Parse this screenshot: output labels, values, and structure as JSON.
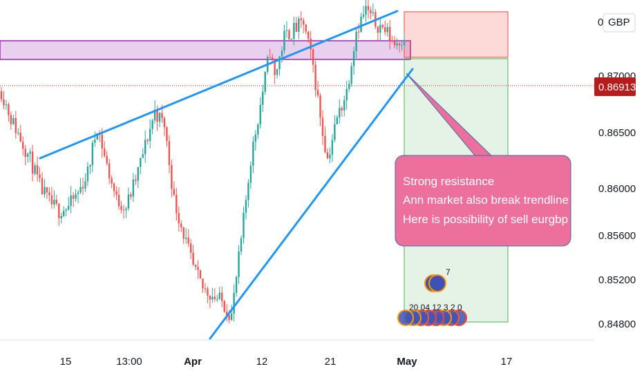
{
  "currency_label": "GBP",
  "currency_prefix": "0",
  "current_price": "0.86913",
  "annotation": {
    "lines": [
      "Strong resistance",
      "Ann market also break trendline",
      "Here is possibility of sell eurgbp"
    ]
  },
  "event_markers": {
    "top_text": "7",
    "bottom_text": "20 04 12 3 2 0"
  },
  "colors": {
    "bull": "#26a69a",
    "bear": "#ef5350",
    "trendline": "#2196f3",
    "resistance_zone": "#9c27b0",
    "stop_zone": "#f44336",
    "target_zone": "#4caf50",
    "annotation_bg": "#ec6f9c",
    "price_tag": "#b71c1c"
  },
  "chart_data": {
    "type": "candlestick",
    "symbol": "EURGBP",
    "y_ticks": [
      "0.86500",
      "0.86000",
      "0.85600",
      "0.85200",
      "0.84800"
    ],
    "x_ticks": [
      {
        "label": "15",
        "bold": false
      },
      {
        "label": "13:00",
        "bold": false
      },
      {
        "label": "Apr",
        "bold": true
      },
      {
        "label": "12",
        "bold": false
      },
      {
        "label": "21",
        "bold": false
      },
      {
        "label": "May",
        "bold": true
      },
      {
        "label": "17",
        "bold": false
      }
    ],
    "ylim": [
      0.8467,
      0.8717
    ],
    "current_price": 0.86913,
    "price_path": [
      [
        0,
        0.865
      ],
      [
        4,
        0.863
      ],
      [
        8,
        0.8615
      ],
      [
        12,
        0.86
      ],
      [
        16,
        0.858
      ],
      [
        20,
        0.8568
      ],
      [
        24,
        0.8562
      ],
      [
        28,
        0.8565
      ],
      [
        32,
        0.8575
      ],
      [
        36,
        0.859
      ],
      [
        40,
        0.8625
      ],
      [
        44,
        0.8595
      ],
      [
        48,
        0.857
      ],
      [
        52,
        0.8565
      ],
      [
        56,
        0.8585
      ],
      [
        60,
        0.861
      ],
      [
        64,
        0.8635
      ],
      [
        68,
        0.8625
      ],
      [
        72,
        0.857
      ],
      [
        76,
        0.8545
      ],
      [
        80,
        0.852
      ],
      [
        84,
        0.8505
      ],
      [
        88,
        0.85
      ],
      [
        92,
        0.8495
      ],
      [
        94,
        0.849
      ],
      [
        96,
        0.8485
      ],
      [
        100,
        0.854
      ],
      [
        104,
        0.86
      ],
      [
        108,
        0.864
      ],
      [
        112,
        0.868
      ],
      [
        114,
        0.866
      ],
      [
        118,
        0.869
      ],
      [
        122,
        0.8695
      ],
      [
        126,
        0.87
      ],
      [
        130,
        0.8668
      ],
      [
        134,
        0.862
      ],
      [
        136,
        0.86
      ],
      [
        140,
        0.863
      ],
      [
        144,
        0.865
      ],
      [
        148,
        0.8695
      ],
      [
        152,
        0.871
      ],
      [
        156,
        0.87
      ],
      [
        160,
        0.8695
      ],
      [
        164,
        0.8685
      ],
      [
        168,
        0.869
      ]
    ],
    "trendlines": [
      {
        "name": "upper",
        "points": [
          [
            0.863,
            8
          ],
          [
            0.874,
            168
          ]
        ]
      },
      {
        "name": "lower",
        "points": [
          [
            0.8465,
            93
          ],
          [
            0.8705,
            170
          ]
        ]
      }
    ],
    "zones": [
      {
        "name": "resistance",
        "low": 0.8708,
        "high": 0.872
      },
      {
        "name": "stop",
        "low": 0.8708,
        "high": 0.874
      },
      {
        "name": "target",
        "low": 0.8482,
        "high": 0.8708
      }
    ]
  }
}
